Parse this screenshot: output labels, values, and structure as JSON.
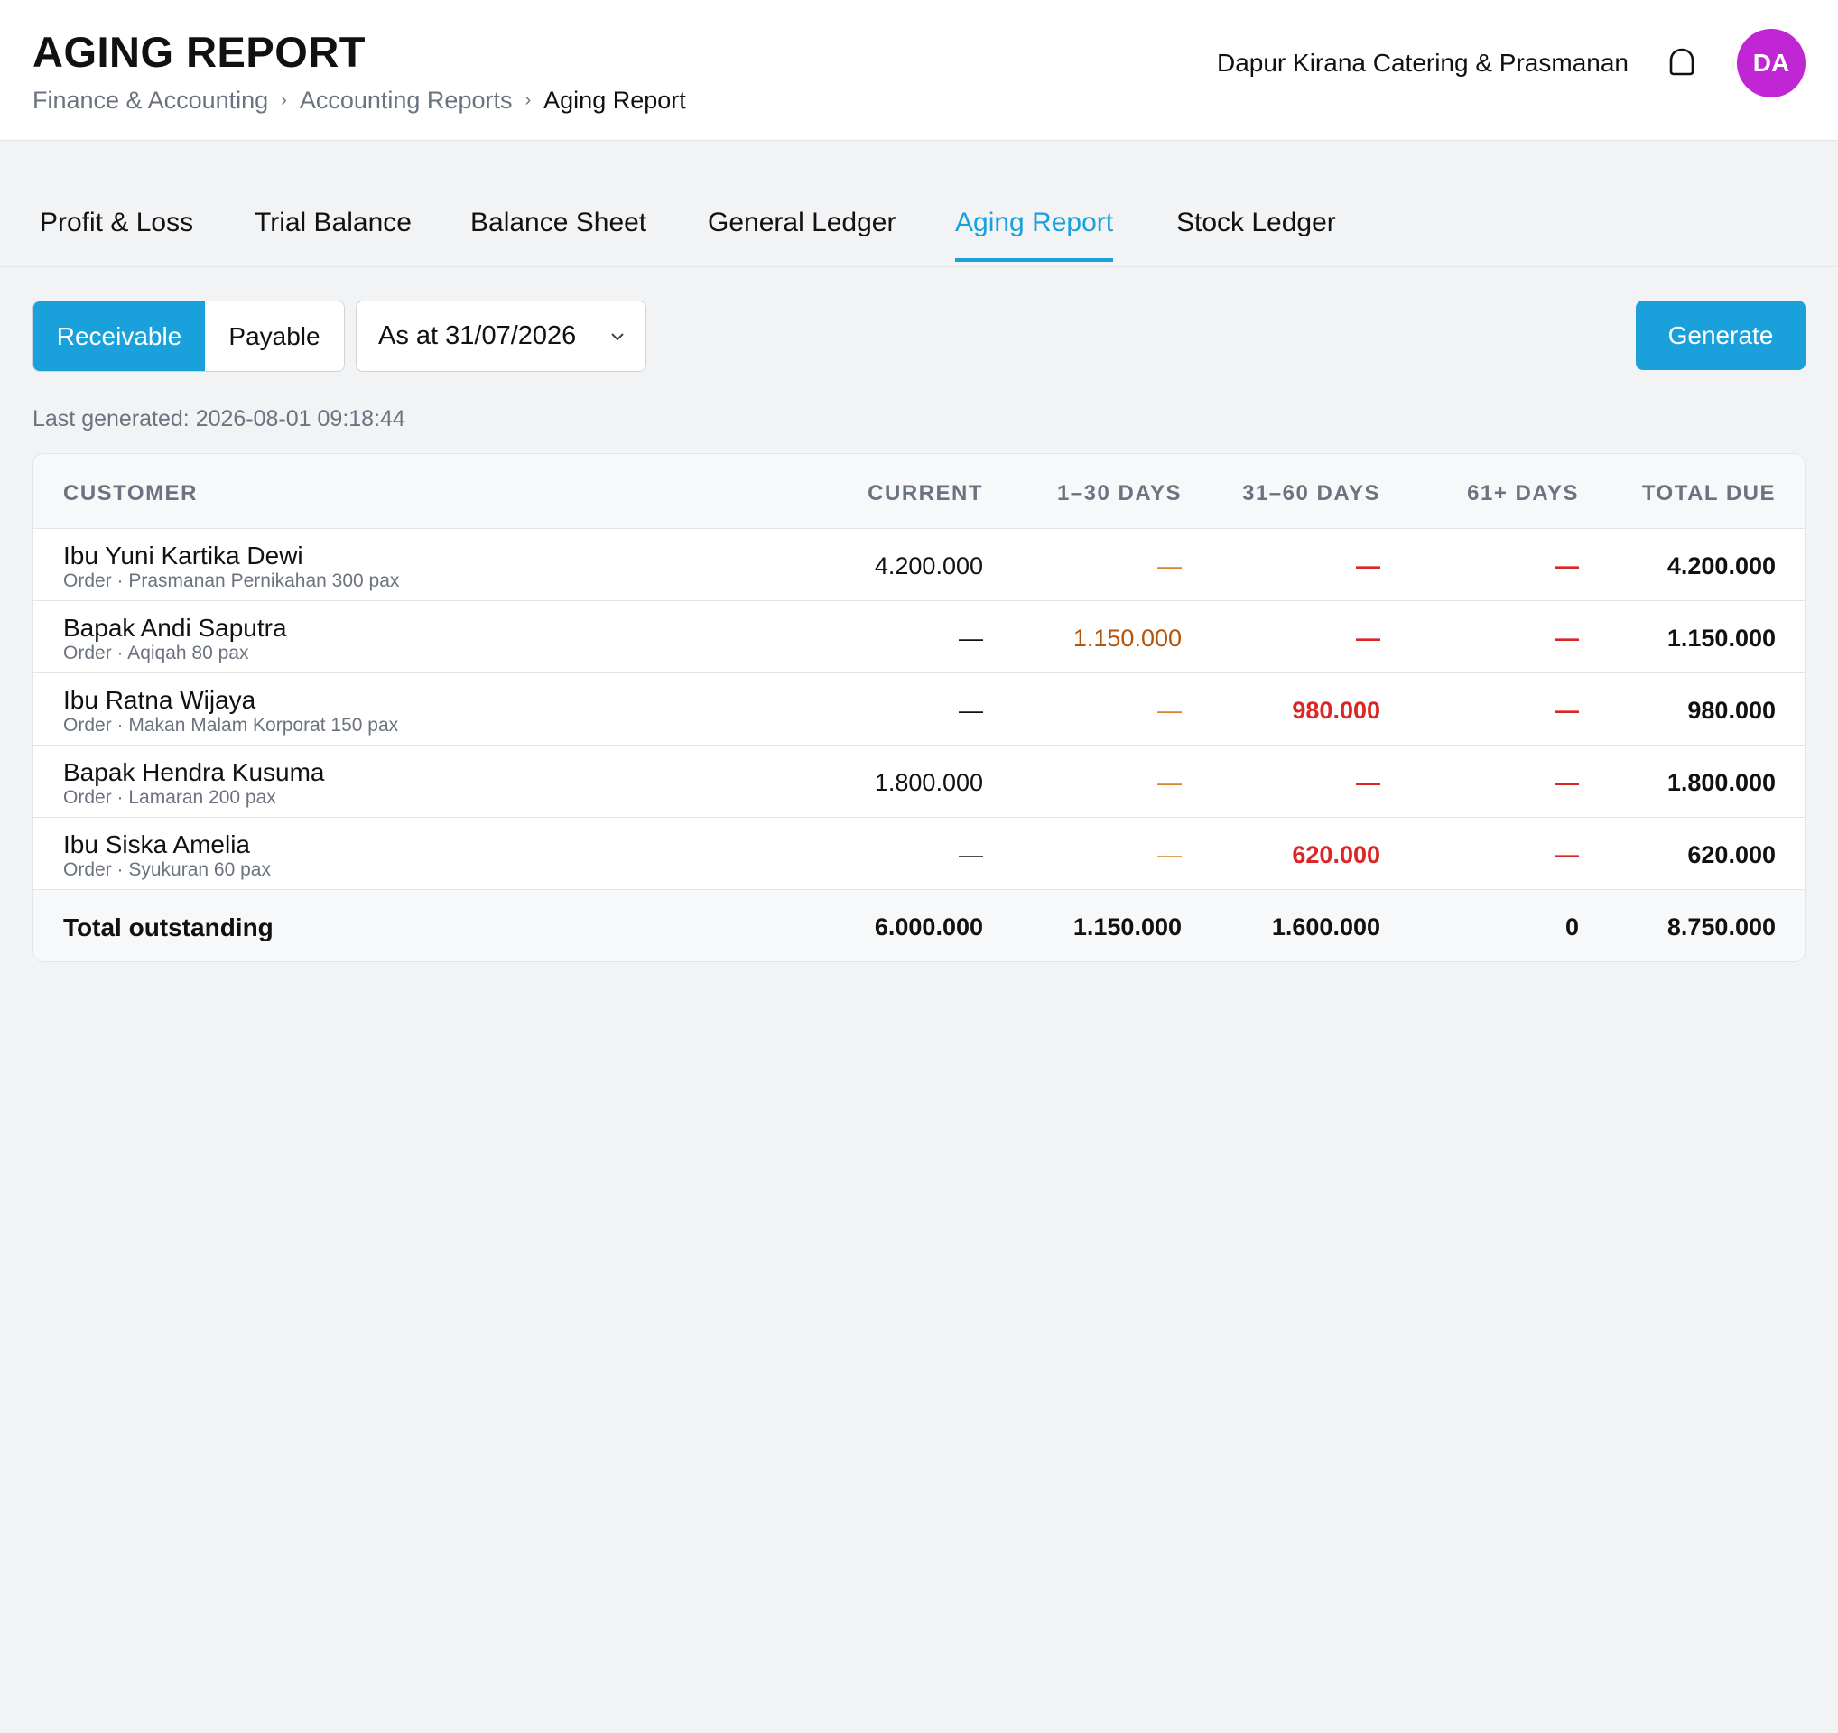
{
  "header": {
    "title": "AGING REPORT",
    "breadcrumb": [
      "Finance & Accounting",
      "Accounting Reports",
      "Aging Report"
    ],
    "company": "Dapur Kirana Catering & Prasmanan",
    "avatar_initials": "DA",
    "avatar_color": "#c026d3"
  },
  "tabs": [
    {
      "label": "Profit & Loss",
      "active": false
    },
    {
      "label": "Trial Balance",
      "active": false
    },
    {
      "label": "Balance Sheet",
      "active": false
    },
    {
      "label": "General Ledger",
      "active": false
    },
    {
      "label": "Aging Report",
      "active": true
    },
    {
      "label": "Stock Ledger",
      "active": false
    }
  ],
  "controls": {
    "receivable_label": "Receivable",
    "payable_label": "Payable",
    "selected_type": "Receivable",
    "date_value": "As at 31/07/2026",
    "generate_label": "Generate",
    "accent_color": "#1aa1dc"
  },
  "last_generated": "Last generated: 2026-08-01 09:18:44",
  "table": {
    "columns": [
      "CUSTOMER",
      "CURRENT",
      "1–30 DAYS",
      "31–60 DAYS",
      "61+ DAYS",
      "TOTAL DUE"
    ],
    "rows": [
      {
        "name": "Ibu Yuni Kartika Dewi",
        "sub": "Order · Prasmanan Pernikahan 300 pax",
        "current": "4.200.000",
        "d1_30": "—",
        "d31_60": "—",
        "d61": "—",
        "total": "4.200.000"
      },
      {
        "name": "Bapak Andi Saputra",
        "sub": "Order · Aqiqah 80 pax",
        "current": "—",
        "d1_30": "1.150.000",
        "d31_60": "—",
        "d61": "—",
        "total": "1.150.000"
      },
      {
        "name": "Ibu Ratna Wijaya",
        "sub": "Order · Makan Malam Korporat 150 pax",
        "current": "—",
        "d1_30": "—",
        "d31_60": "980.000",
        "d61": "—",
        "total": "980.000"
      },
      {
        "name": "Bapak Hendra Kusuma",
        "sub": "Order · Lamaran 200 pax",
        "current": "1.800.000",
        "d1_30": "—",
        "d31_60": "—",
        "d61": "—",
        "total": "1.800.000"
      },
      {
        "name": "Ibu Siska Amelia",
        "sub": "Order · Syukuran 60 pax",
        "current": "—",
        "d1_30": "—",
        "d31_60": "620.000",
        "d61": "—",
        "total": "620.000"
      }
    ],
    "totals": {
      "label": "Total outstanding",
      "current": "6.000.000",
      "d1_30": "1.150.000",
      "d31_60": "1.600.000",
      "d61": "0",
      "total": "8.750.000"
    }
  }
}
